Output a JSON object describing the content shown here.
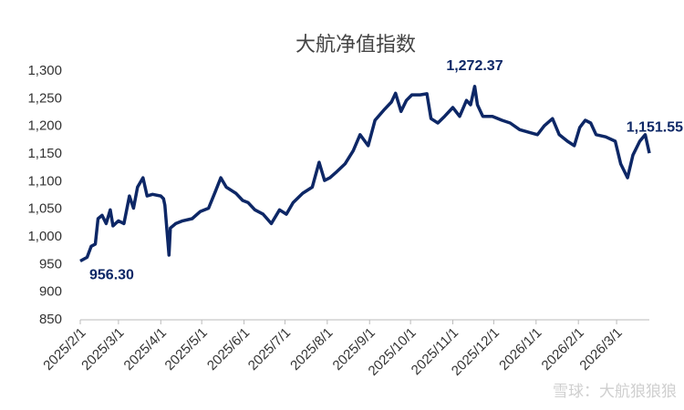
{
  "chart_data": {
    "type": "line",
    "title": "大航净值指数",
    "watermark": "雪球：大航狼狼狼",
    "x": [
      "2025/2/1",
      "2025/2/6",
      "2025/2/9",
      "2025/2/12",
      "2025/2/14",
      "2025/2/17",
      "2025/2/20",
      "2025/2/23",
      "2025/2/25",
      "2025/3/1",
      "2025/3/5",
      "2025/3/9",
      "2025/3/12",
      "2025/3/15",
      "2025/3/19",
      "2025/3/22",
      "2025/3/26",
      "2025/4/1",
      "2025/4/3",
      "2025/4/4",
      "2025/4/7",
      "2025/4/8",
      "2025/4/12",
      "2025/4/17",
      "2025/4/24",
      "2025/4/30",
      "2025/5/6",
      "2025/5/11",
      "2025/5/15",
      "2025/5/19",
      "2025/5/26",
      "2025/5/31",
      "2025/6/4",
      "2025/6/9",
      "2025/6/15",
      "2025/6/21",
      "2025/6/27",
      "2025/7/2",
      "2025/7/7",
      "2025/7/14",
      "2025/7/21",
      "2025/7/26",
      "2025/7/30",
      "2025/8/3",
      "2025/8/8",
      "2025/8/14",
      "2025/8/20",
      "2025/8/25",
      "2025/8/31",
      "2025/9/5",
      "2025/9/12",
      "2025/9/17",
      "2025/9/20",
      "2025/9/24",
      "2025/9/28",
      "2025/10/2",
      "2025/10/8",
      "2025/10/13",
      "2025/10/16",
      "2025/10/21",
      "2025/10/26",
      "2025/11/1",
      "2025/11/6",
      "2025/11/11",
      "2025/11/14",
      "2025/11/17",
      "2025/11/19",
      "2025/11/23",
      "2025/11/30",
      "2025/12/7",
      "2025/12/13",
      "2025/12/20",
      "2025/12/27",
      "2026/1/2",
      "2026/1/7",
      "2026/1/13",
      "2026/1/18",
      "2026/1/24",
      "2026/1/29",
      "2026/2/2",
      "2026/2/6",
      "2026/2/10",
      "2026/2/14",
      "2026/2/21",
      "2026/2/28",
      "2026/3/4",
      "2026/3/9",
      "2026/3/13",
      "2026/3/18",
      "2026/3/22",
      "2026/3/25"
    ],
    "values": [
      956.3,
      963,
      983,
      987,
      1033,
      1039,
      1024,
      1049,
      1020,
      1029,
      1024,
      1074,
      1052,
      1090,
      1107,
      1074,
      1077,
      1074,
      1069,
      1057,
      967,
      1016,
      1024,
      1029,
      1033,
      1046,
      1052,
      1082,
      1107,
      1090,
      1079,
      1066,
      1062,
      1049,
      1041,
      1024,
      1049,
      1041,
      1062,
      1079,
      1090,
      1135,
      1102,
      1107,
      1118,
      1132,
      1156,
      1185,
      1165,
      1211,
      1231,
      1244,
      1260,
      1227,
      1247,
      1257,
      1257,
      1259,
      1214,
      1206,
      1218,
      1234,
      1218,
      1247,
      1239,
      1272.37,
      1239,
      1218,
      1218,
      1211,
      1206,
      1194,
      1189,
      1185,
      1201,
      1214,
      1185,
      1173,
      1165,
      1198,
      1211,
      1206,
      1185,
      1181,
      1173,
      1132,
      1107,
      1148,
      1173,
      1185,
      1151.55
    ],
    "value_labels": [
      "956.30",
      null,
      null,
      null,
      null,
      null,
      null,
      null,
      null,
      null,
      null,
      null,
      null,
      null,
      null,
      null,
      null,
      null,
      null,
      null,
      null,
      null,
      null,
      null,
      null,
      null,
      null,
      null,
      null,
      null,
      null,
      null,
      null,
      null,
      null,
      null,
      null,
      null,
      null,
      null,
      null,
      null,
      null,
      null,
      null,
      null,
      null,
      null,
      null,
      null,
      null,
      null,
      null,
      null,
      null,
      null,
      null,
      null,
      null,
      null,
      null,
      null,
      null,
      null,
      null,
      "1,272.37",
      null,
      null,
      null,
      null,
      null,
      null,
      null,
      null,
      null,
      null,
      null,
      null,
      null,
      null,
      null,
      null,
      null,
      null,
      null,
      null,
      null,
      null,
      null,
      null,
      "1,151.55"
    ],
    "color": "#0d2766",
    "xlim": [
      "2025/2/1",
      "2026/3/25"
    ],
    "xticks": [
      "2025/2/1",
      "2025/3/1",
      "2025/4/1",
      "2025/5/1",
      "2025/6/1",
      "2025/7/1",
      "2025/8/1",
      "2025/9/1",
      "2025/10/1",
      "2025/11/1",
      "2025/12/1",
      "2026/1/1",
      "2026/2/1",
      "2026/3/1"
    ],
    "ylim": [
      850,
      1300
    ],
    "yticks": [
      850,
      900,
      950,
      {
        "value": 1000,
        "label": "1,000"
      },
      {
        "value": 1050,
        "label": "1,050"
      },
      {
        "value": 1100,
        "label": "1,100"
      },
      {
        "value": 1150,
        "label": "1,150"
      },
      {
        "value": 1200,
        "label": "1,200"
      },
      {
        "value": 1250,
        "label": "1,250"
      },
      {
        "value": 1300,
        "label": "1,300"
      }
    ],
    "grid": false
  }
}
